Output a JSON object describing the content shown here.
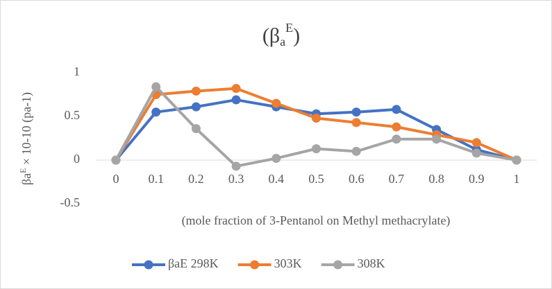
{
  "chart_data": {
    "type": "line",
    "title": {
      "open": "(β",
      "sub": "a",
      "sup": "E",
      "close": ")"
    },
    "y_label": {
      "base": "βa",
      "sup": "E",
      "rest": " × 10-10 (pa-1)"
    },
    "x_label": "(mole fraction of 3-Pentanol on Methyl methacrylate)",
    "categories": [
      "0",
      "0.1",
      "0.2",
      "0.3",
      "0.4",
      "0.5",
      "0.6",
      "0.7",
      "0.8",
      "0.9",
      "1"
    ],
    "series": [
      {
        "name": "βaE 298K",
        "color": "#4472c4",
        "values": [
          0,
          0.55,
          0.61,
          0.69,
          0.61,
          0.53,
          0.55,
          0.58,
          0.35,
          0.12,
          0
        ]
      },
      {
        "name": "303K",
        "color": "#ed7d31",
        "values": [
          0,
          0.75,
          0.79,
          0.82,
          0.65,
          0.48,
          0.43,
          0.38,
          0.29,
          0.2,
          0
        ]
      },
      {
        "name": "308K",
        "color": "#a5a5a5",
        "values": [
          0,
          0.84,
          0.36,
          -0.07,
          0.02,
          0.13,
          0.1,
          0.24,
          0.24,
          0.08,
          0
        ]
      }
    ],
    "ylim": [
      -0.5,
      1
    ],
    "yticks": [
      -0.5,
      0,
      0.5,
      1
    ],
    "legend": "bottom"
  }
}
